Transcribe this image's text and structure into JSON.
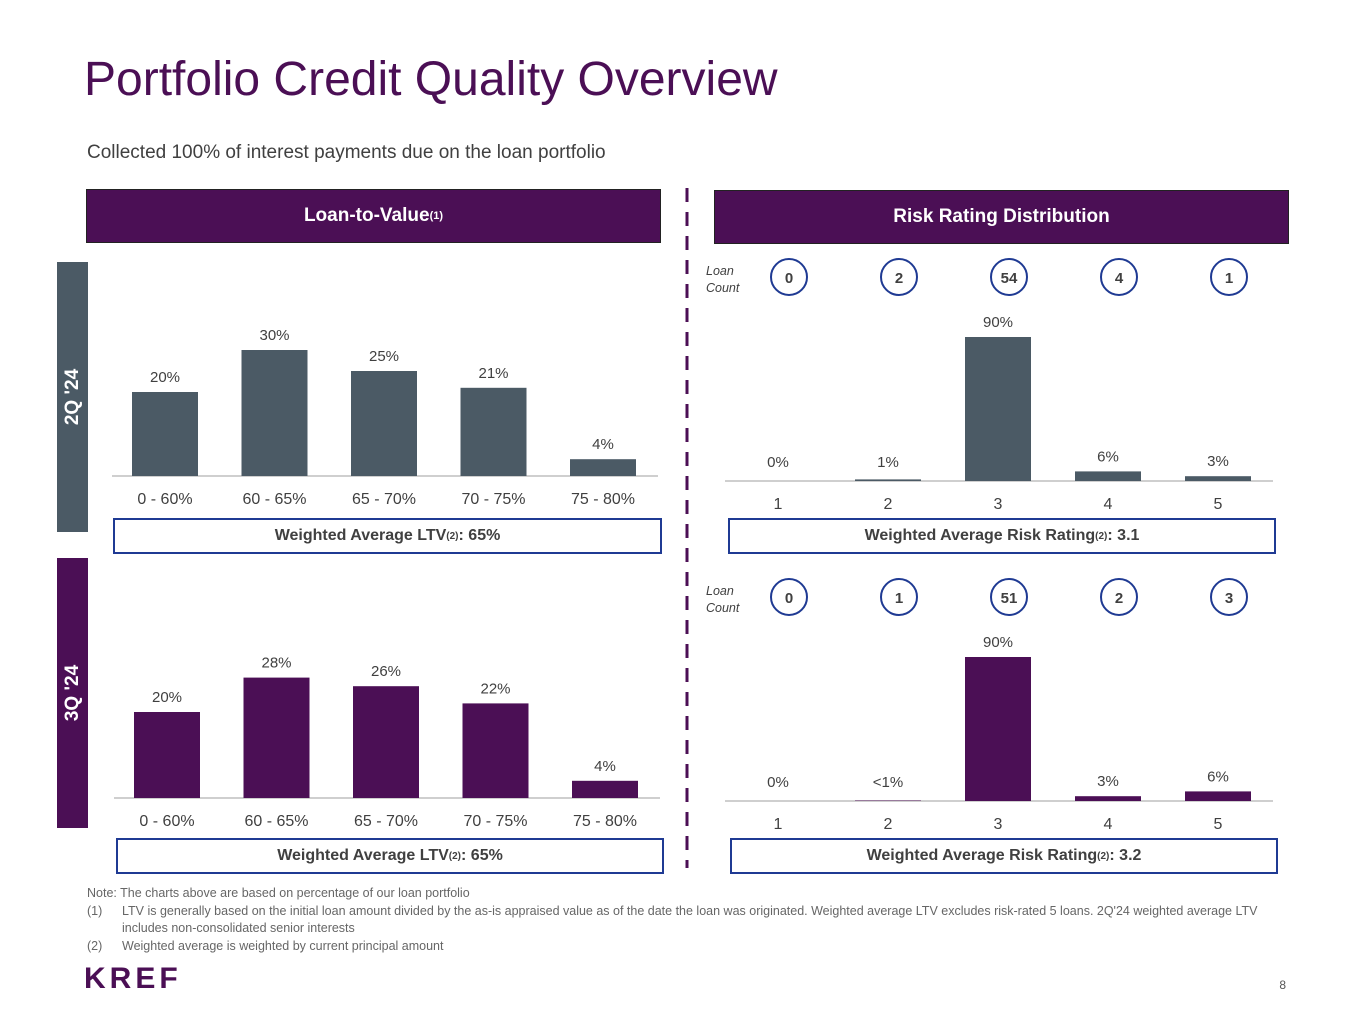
{
  "title": "Portfolio Credit Quality Overview",
  "subtitle": "Collected 100% of interest payments due on the loan portfolio",
  "ltv_header": {
    "label": "Loan-to-Value",
    "sup": "(1)"
  },
  "risk_header": {
    "label": "Risk Rating Distribution"
  },
  "period_2q": "2Q '24",
  "period_3q": "3Q '24",
  "loan_count_label": "Loan Count",
  "wa_ltv_2q": {
    "label": "Weighted Average LTV",
    "sup": "(2)",
    "value": ": 65%"
  },
  "wa_ltv_3q": {
    "label": "Weighted Average LTV",
    "sup": "(2)",
    "value": ": 65%"
  },
  "wa_rr_2q": {
    "label": "Weighted Average Risk Rating",
    "sup": "(2)",
    "value": ": 3.1"
  },
  "wa_rr_3q": {
    "label": "Weighted Average Risk Rating",
    "sup": "(2)",
    "value": ": 3.2"
  },
  "notes": {
    "main": "Note: The charts above are based on percentage of our loan portfolio",
    "items": [
      {
        "num": "(1)",
        "text": "LTV is generally based on the initial loan amount divided by the as-is appraised value as of the date the loan was originated. Weighted average LTV excludes risk-rated 5 loans. 2Q'24 weighted average LTV includes non-consolidated senior interests"
      },
      {
        "num": "(2)",
        "text": "Weighted average is weighted by current principal amount"
      }
    ]
  },
  "logo": "KREF",
  "page_number": "8",
  "colors": {
    "purple": "#4b0f55",
    "slate": "#4b5a65",
    "navy": "#1f3a93"
  },
  "chart_data": [
    {
      "type": "bar",
      "id": "ltv-2q",
      "categories": [
        "0 - 60%",
        "60 - 65%",
        "65 - 70%",
        "70 - 75%",
        "75 - 80%"
      ],
      "values": [
        20,
        30,
        25,
        21,
        4
      ],
      "labels": [
        "20%",
        "30%",
        "25%",
        "21%",
        "4%"
      ],
      "color": "#4b5a65"
    },
    {
      "type": "bar",
      "id": "ltv-3q",
      "categories": [
        "0 - 60%",
        "60 - 65%",
        "65 - 70%",
        "70 - 75%",
        "75 - 80%"
      ],
      "values": [
        20,
        28,
        26,
        22,
        4
      ],
      "labels": [
        "20%",
        "28%",
        "26%",
        "22%",
        "4%"
      ],
      "color": "#4b0f55"
    },
    {
      "type": "bar",
      "id": "rr-2q",
      "categories": [
        "1",
        "2",
        "3",
        "4",
        "5"
      ],
      "values": [
        0,
        1,
        90,
        6,
        3
      ],
      "labels": [
        "0%",
        "1%",
        "90%",
        "6%",
        "3%"
      ],
      "loan_counts": [
        "0",
        "2",
        "54",
        "4",
        "1"
      ],
      "color": "#4b5a65"
    },
    {
      "type": "bar",
      "id": "rr-3q",
      "categories": [
        "1",
        "2",
        "3",
        "4",
        "5"
      ],
      "values": [
        0,
        0.3,
        90,
        3,
        6
      ],
      "labels": [
        "0%",
        "<1%",
        "90%",
        "3%",
        "6%"
      ],
      "loan_counts": [
        "0",
        "1",
        "51",
        "2",
        "3"
      ],
      "color": "#4b0f55"
    }
  ]
}
